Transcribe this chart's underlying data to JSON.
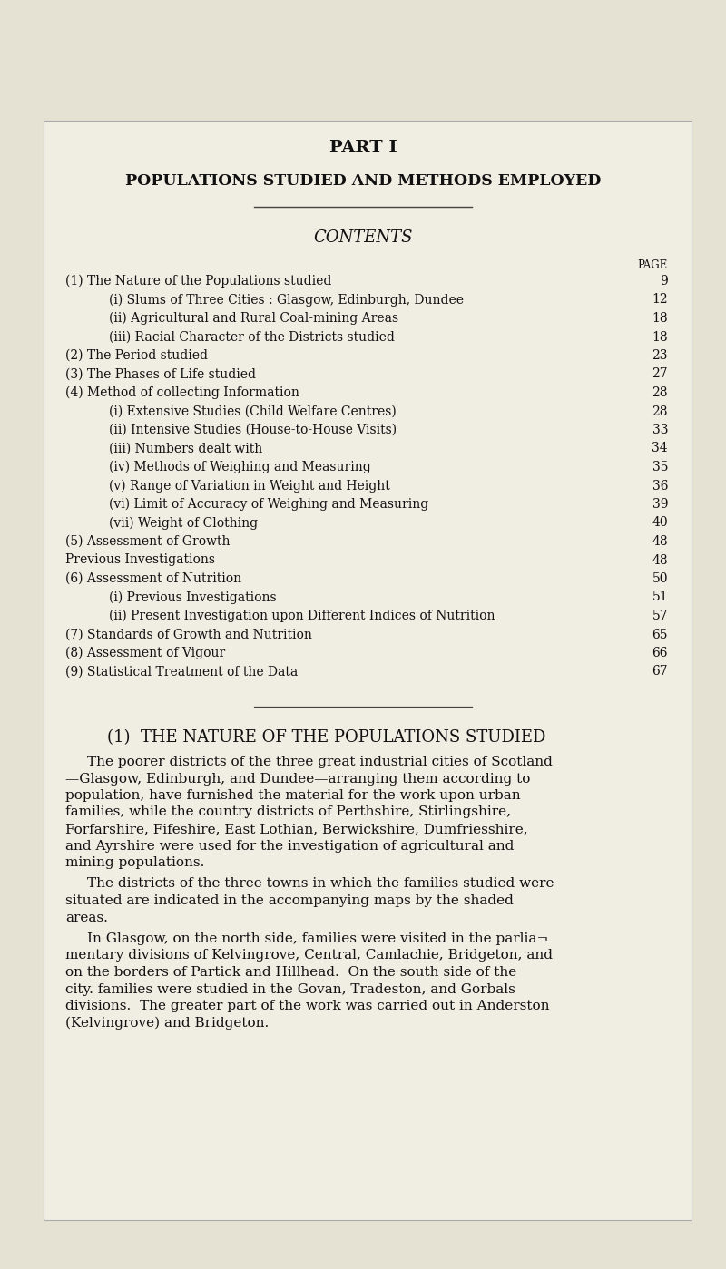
{
  "bg_color": "#e5e1d3",
  "page_bg": "#f0ede3",
  "text_color": "#111111",
  "part_title": "PART I",
  "subtitle": "POPULATIONS STUDIED AND METHODS EMPLOYED",
  "section_title": "CONTENTS",
  "page_label": "PAGE",
  "contents": [
    {
      "indent": 0,
      "text": "(1) The Nature of the Populations studied",
      "page": "9",
      "smallcaps": true
    },
    {
      "indent": 1,
      "text": "(i) Slums of Three Cities : Glasgow, Edinburgh, Dundee",
      "page": "12",
      "smallcaps": false
    },
    {
      "indent": 1,
      "text": "(ii) Agricultural and Rural Coal-mining Areas",
      "page": "18",
      "smallcaps": false
    },
    {
      "indent": 1,
      "text": "(iii) Racial Character of the Districts studied",
      "page": "18",
      "smallcaps": false
    },
    {
      "indent": 0,
      "text": "(2) The Period studied",
      "page": "23",
      "smallcaps": true
    },
    {
      "indent": 0,
      "text": "(3) The Phases of Life studied",
      "page": "27",
      "smallcaps": true
    },
    {
      "indent": 0,
      "text": "(4) Method of collecting Information",
      "page": "28",
      "smallcaps": true
    },
    {
      "indent": 1,
      "text": "(i) Extensive Studies (Child Welfare Centres)",
      "page": "28",
      "smallcaps": false
    },
    {
      "indent": 1,
      "text": "(ii) Intensive Studies (House-to-House Visits)",
      "page": "33",
      "smallcaps": false
    },
    {
      "indent": 1,
      "text": "(iii) Numbers dealt with",
      "page": "34",
      "smallcaps": false
    },
    {
      "indent": 1,
      "text": "(iv) Methods of Weighing and Measuring",
      "page": "35",
      "smallcaps": false
    },
    {
      "indent": 1,
      "text": "(v) Range of Variation in Weight and Height",
      "page": "36",
      "smallcaps": false
    },
    {
      "indent": 1,
      "text": "(vi) Limit of Accuracy of Weighing and Measuring",
      "page": "39",
      "smallcaps": false
    },
    {
      "indent": 1,
      "text": "(vii) Weight of Clothing",
      "page": "40",
      "smallcaps": false
    },
    {
      "indent": 0,
      "text": "(5) Assessment of Growth",
      "page": "48",
      "smallcaps": true
    },
    {
      "indent": 0,
      "text": "Previous Investigations",
      "page": "48",
      "smallcaps": false
    },
    {
      "indent": 0,
      "text": "(6) Assessment of Nutrition",
      "page": "50",
      "smallcaps": true
    },
    {
      "indent": 1,
      "text": "(i) Previous Investigations",
      "page": "51",
      "smallcaps": false
    },
    {
      "indent": 1,
      "text": "(ii) Present Investigation upon Different Indices of Nutrition",
      "page": "57",
      "smallcaps": false
    },
    {
      "indent": 0,
      "text": "(7) Standards of Growth and Nutrition",
      "page": "65",
      "smallcaps": true
    },
    {
      "indent": 0,
      "text": "(8) Assessment of Vigour",
      "page": "66",
      "smallcaps": true
    },
    {
      "indent": 0,
      "text": "(9) Statistical Treatment of the Data",
      "page": "67",
      "smallcaps": true
    }
  ],
  "section2_title": "(1)  THE NATURE OF THE POPULATIONS STUDIED",
  "para1_lines": [
    "The poorer districts of the three great industrial cities of Scotland",
    "—Glasgow, Edinburgh, and Dundee—arranging them according to",
    "population, have furnished the material for the work upon urban",
    "families, while the country districts of Perthshire, Stirlingshire,",
    "Forfarshire, Fifeshire, East Lothian, Berwickshire, Dumfriesshire,",
    "and Ayrshire were used for the investigation of agricultural and",
    "mining populations."
  ],
  "para2_lines": [
    "The districts of the three towns in which the families studied were",
    "situated are indicated in the accompanying maps by the shaded",
    "areas."
  ],
  "para3_lines": [
    "In Glasgow, on the north side, families were visited in the parlia¬",
    "mentary divisions of Kelvingrove, Central, Camlachie, Bridgeton, and",
    "on the borders of Partick and Hillhead.  On the south side of the",
    "city. families were studied in the Govan, Tradeston, and Gorbals",
    "divisions.  The greater part of the work was carried out in Anderston",
    "(Kelvingrove) and Bridgeton."
  ]
}
